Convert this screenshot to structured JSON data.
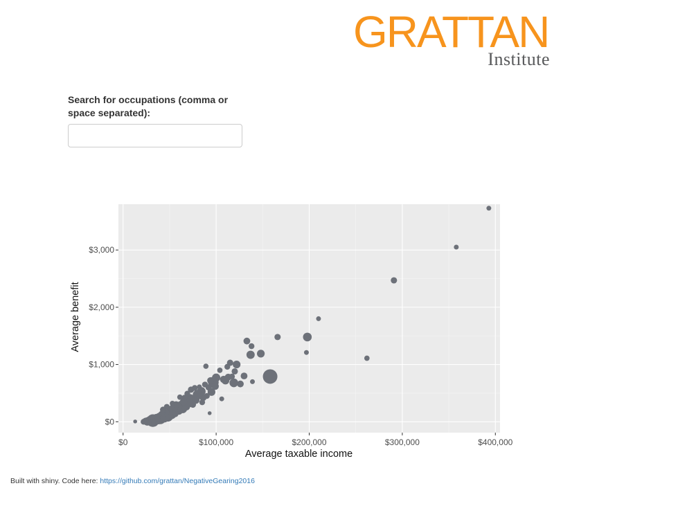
{
  "logo": {
    "main": "GRATTAN",
    "sub": "Institute",
    "main_color": "#f7941d",
    "sub_color": "#58595b"
  },
  "search": {
    "label": "Search for occupations (comma or space separated):",
    "value": "",
    "placeholder": ""
  },
  "footer": {
    "text": "Built with shiny. Code here: ",
    "link_text": "https://github.com/grattan/NegativeGearing2016"
  },
  "chart_data": {
    "type": "scatter",
    "xlabel": "Average taxable income",
    "ylabel": "Average benefit",
    "xlim": [
      -5000,
      405000
    ],
    "ylim": [
      -190,
      3800
    ],
    "x_ticks": [
      0,
      100000,
      200000,
      300000,
      400000
    ],
    "x_tick_labels": [
      "$0",
      "$100,000",
      "$200,000",
      "$300,000",
      "$400,000"
    ],
    "y_ticks": [
      0,
      1000,
      2000,
      3000
    ],
    "y_tick_labels": [
      "$0",
      "$1,000",
      "$2,000",
      "$3,000"
    ],
    "grid": true,
    "background": "#ebebeb",
    "point_color": "#6d7179",
    "points": [
      {
        "x": 393000,
        "y": 3730,
        "s": 1
      },
      {
        "x": 358000,
        "y": 3050,
        "s": 1
      },
      {
        "x": 291000,
        "y": 2470,
        "s": 1.3
      },
      {
        "x": 210000,
        "y": 1800,
        "s": 1
      },
      {
        "x": 198000,
        "y": 1480,
        "s": 1.8
      },
      {
        "x": 197000,
        "y": 1210,
        "s": 1
      },
      {
        "x": 262000,
        "y": 1110,
        "s": 1.1
      },
      {
        "x": 166000,
        "y": 1480,
        "s": 1.3
      },
      {
        "x": 133000,
        "y": 1410,
        "s": 1.4
      },
      {
        "x": 138000,
        "y": 1320,
        "s": 1.2
      },
      {
        "x": 148000,
        "y": 1190,
        "s": 1.6
      },
      {
        "x": 137000,
        "y": 1170,
        "s": 1.7
      },
      {
        "x": 158000,
        "y": 790,
        "s": 3
      },
      {
        "x": 139000,
        "y": 700,
        "s": 1
      },
      {
        "x": 130000,
        "y": 800,
        "s": 1.4
      },
      {
        "x": 122000,
        "y": 1000,
        "s": 1.6
      },
      {
        "x": 115000,
        "y": 1030,
        "s": 1.3
      },
      {
        "x": 112000,
        "y": 960,
        "s": 1.2
      },
      {
        "x": 120000,
        "y": 880,
        "s": 1.3
      },
      {
        "x": 119000,
        "y": 680,
        "s": 1.8
      },
      {
        "x": 108000,
        "y": 740,
        "s": 1.5
      },
      {
        "x": 104000,
        "y": 900,
        "s": 1.1
      },
      {
        "x": 100000,
        "y": 770,
        "s": 1.7
      },
      {
        "x": 97000,
        "y": 690,
        "s": 2.2
      },
      {
        "x": 95000,
        "y": 520,
        "s": 1.6
      },
      {
        "x": 92000,
        "y": 600,
        "s": 1.3
      },
      {
        "x": 90000,
        "y": 450,
        "s": 1.2
      },
      {
        "x": 89000,
        "y": 970,
        "s": 1.1
      },
      {
        "x": 86000,
        "y": 420,
        "s": 1.4
      },
      {
        "x": 84000,
        "y": 530,
        "s": 1.8
      },
      {
        "x": 80000,
        "y": 470,
        "s": 2
      },
      {
        "x": 78000,
        "y": 380,
        "s": 1.6
      },
      {
        "x": 77000,
        "y": 590,
        "s": 1.2
      },
      {
        "x": 75000,
        "y": 300,
        "s": 1.3
      },
      {
        "x": 72000,
        "y": 410,
        "s": 1.7
      },
      {
        "x": 70000,
        "y": 330,
        "s": 2
      },
      {
        "x": 68000,
        "y": 260,
        "s": 1.5
      },
      {
        "x": 66000,
        "y": 420,
        "s": 1.2
      },
      {
        "x": 64000,
        "y": 230,
        "s": 1.9
      },
      {
        "x": 62000,
        "y": 310,
        "s": 1.3
      },
      {
        "x": 60000,
        "y": 190,
        "s": 1.6
      },
      {
        "x": 58000,
        "y": 260,
        "s": 2.1
      },
      {
        "x": 56000,
        "y": 140,
        "s": 1.4
      },
      {
        "x": 54000,
        "y": 230,
        "s": 1.8
      },
      {
        "x": 52000,
        "y": 130,
        "s": 2
      },
      {
        "x": 50000,
        "y": 190,
        "s": 1.3
      },
      {
        "x": 48000,
        "y": 100,
        "s": 2.3
      },
      {
        "x": 46000,
        "y": 150,
        "s": 1.5
      },
      {
        "x": 44000,
        "y": 80,
        "s": 2.2
      },
      {
        "x": 42000,
        "y": 120,
        "s": 1.7
      },
      {
        "x": 40000,
        "y": 60,
        "s": 2.4
      },
      {
        "x": 38000,
        "y": 40,
        "s": 2
      },
      {
        "x": 36000,
        "y": 70,
        "s": 1.6
      },
      {
        "x": 34000,
        "y": 30,
        "s": 2.2
      },
      {
        "x": 32000,
        "y": 20,
        "s": 2.6
      },
      {
        "x": 30000,
        "y": 10,
        "s": 2
      },
      {
        "x": 28000,
        "y": 30,
        "s": 1.5
      },
      {
        "x": 26000,
        "y": 5,
        "s": 1.7
      },
      {
        "x": 24000,
        "y": 15,
        "s": 1.3
      },
      {
        "x": 22000,
        "y": 0,
        "s": 1.2
      },
      {
        "x": 13000,
        "y": 5,
        "s": 0.8
      },
      {
        "x": 93000,
        "y": 150,
        "s": 0.8
      },
      {
        "x": 106000,
        "y": 400,
        "s": 1
      },
      {
        "x": 113000,
        "y": 780,
        "s": 1.4
      },
      {
        "x": 110000,
        "y": 720,
        "s": 1.6
      },
      {
        "x": 117000,
        "y": 790,
        "s": 1.2
      },
      {
        "x": 126000,
        "y": 660,
        "s": 1.4
      },
      {
        "x": 99000,
        "y": 620,
        "s": 1.5
      },
      {
        "x": 94000,
        "y": 720,
        "s": 1.4
      },
      {
        "x": 88000,
        "y": 650,
        "s": 1.2
      },
      {
        "x": 85000,
        "y": 340,
        "s": 1.2
      },
      {
        "x": 82000,
        "y": 610,
        "s": 1
      },
      {
        "x": 73000,
        "y": 560,
        "s": 1.3
      },
      {
        "x": 69000,
        "y": 490,
        "s": 1.2
      },
      {
        "x": 65000,
        "y": 350,
        "s": 1.5
      },
      {
        "x": 61000,
        "y": 430,
        "s": 1.1
      },
      {
        "x": 57000,
        "y": 300,
        "s": 1.4
      },
      {
        "x": 53000,
        "y": 320,
        "s": 1.1
      },
      {
        "x": 47000,
        "y": 260,
        "s": 1.2
      },
      {
        "x": 43000,
        "y": 210,
        "s": 1.3
      }
    ]
  }
}
